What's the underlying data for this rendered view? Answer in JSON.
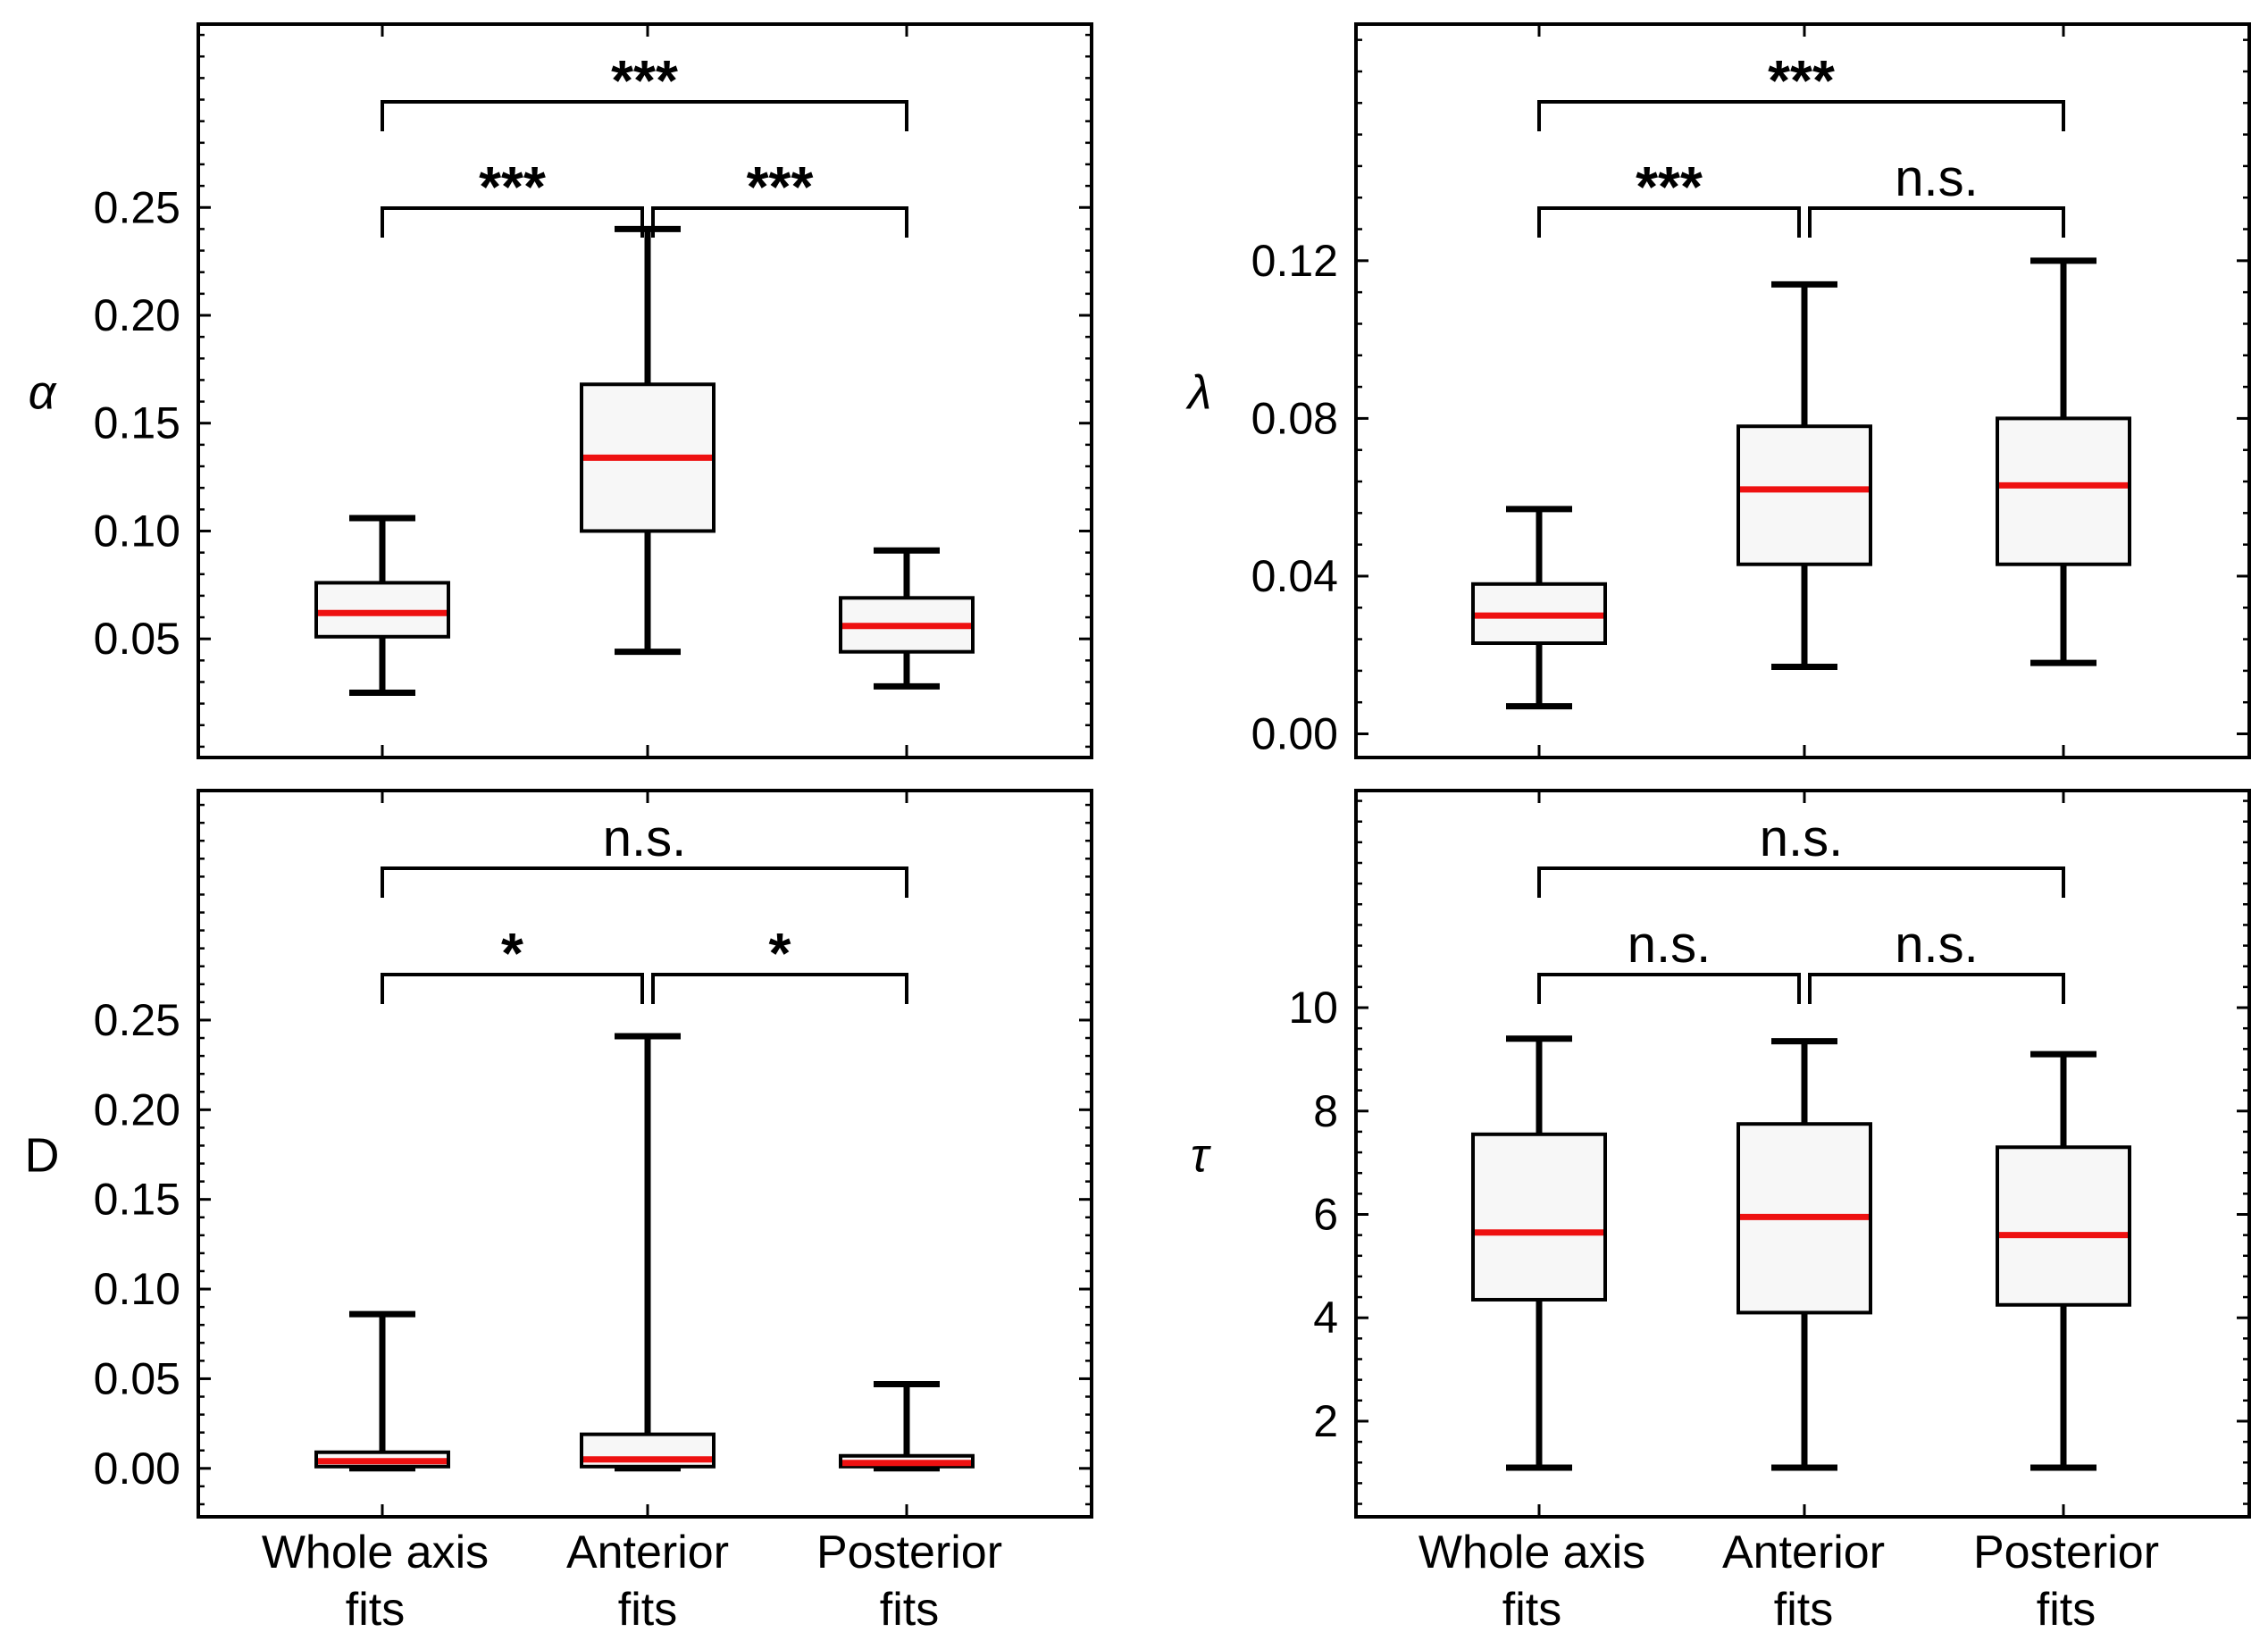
{
  "chart_data": [
    {
      "type": "box",
      "panel": "top-left",
      "ylabel": "α",
      "yticks": [
        "0.05",
        "0.10",
        "0.15",
        "0.20",
        "0.25"
      ],
      "ylim": [
        -0.005,
        0.335
      ],
      "categories": [
        "Whole axis fits",
        "Anterior fits",
        "Posterior fits"
      ],
      "boxes": [
        {
          "whisker_low": 0.025,
          "q1": 0.051,
          "median": 0.062,
          "q3": 0.076,
          "whisker_high": 0.106
        },
        {
          "whisker_low": 0.044,
          "q1": 0.1,
          "median": 0.134,
          "q3": 0.168,
          "whisker_high": 0.24
        },
        {
          "whisker_low": 0.028,
          "q1": 0.044,
          "median": 0.056,
          "q3": 0.069,
          "whisker_high": 0.091
        }
      ],
      "significance": [
        {
          "from": 0,
          "to": 1,
          "label": "***",
          "level": 1
        },
        {
          "from": 1,
          "to": 2,
          "label": "***",
          "level": 1
        },
        {
          "from": 0,
          "to": 2,
          "label": "***",
          "level": 2
        }
      ]
    },
    {
      "type": "box",
      "panel": "top-right",
      "ylabel": "λ",
      "yticks": [
        "0.00",
        "0.04",
        "0.08",
        "0.12"
      ],
      "ylim": [
        -0.006,
        0.18
      ],
      "categories": [
        "Whole axis fits",
        "Anterior fits",
        "Posterior fits"
      ],
      "boxes": [
        {
          "whisker_low": 0.007,
          "q1": 0.023,
          "median": 0.03,
          "q3": 0.038,
          "whisker_high": 0.057
        },
        {
          "whisker_low": 0.017,
          "q1": 0.043,
          "median": 0.062,
          "q3": 0.078,
          "whisker_high": 0.114
        },
        {
          "whisker_low": 0.018,
          "q1": 0.043,
          "median": 0.063,
          "q3": 0.08,
          "whisker_high": 0.12
        }
      ],
      "significance": [
        {
          "from": 0,
          "to": 1,
          "label": "***",
          "level": 1
        },
        {
          "from": 1,
          "to": 2,
          "label": "n.s.",
          "level": 1
        },
        {
          "from": 0,
          "to": 2,
          "label": "***",
          "level": 2
        }
      ]
    },
    {
      "type": "box",
      "panel": "bottom-left",
      "ylabel": "D",
      "yticks": [
        "0.00",
        "0.05",
        "0.10",
        "0.15",
        "0.20",
        "0.25"
      ],
      "ylim": [
        -0.027,
        0.378
      ],
      "categories": [
        "Whole axis fits",
        "Anterior fits",
        "Posterior fits"
      ],
      "boxes": [
        {
          "whisker_low": 0.0,
          "q1": 0.001,
          "median": 0.004,
          "q3": 0.009,
          "whisker_high": 0.086
        },
        {
          "whisker_low": 0.0,
          "q1": 0.001,
          "median": 0.005,
          "q3": 0.019,
          "whisker_high": 0.241
        },
        {
          "whisker_low": 0.0,
          "q1": 0.001,
          "median": 0.003,
          "q3": 0.007,
          "whisker_high": 0.047
        }
      ],
      "significance": [
        {
          "from": 0,
          "to": 1,
          "label": "*",
          "level": 1
        },
        {
          "from": 1,
          "to": 2,
          "label": "*",
          "level": 1
        },
        {
          "from": 0,
          "to": 2,
          "label": "n.s.",
          "level": 2
        }
      ]
    },
    {
      "type": "box",
      "panel": "bottom-right",
      "ylabel": "τ",
      "yticks": [
        "2",
        "4",
        "6",
        "8",
        "10"
      ],
      "ylim": [
        0.15,
        14.2
      ],
      "categories": [
        "Whole axis fits",
        "Anterior fits",
        "Posterior fits"
      ],
      "boxes": [
        {
          "whisker_low": 1.1,
          "q1": 4.35,
          "median": 5.65,
          "q3": 7.55,
          "whisker_high": 9.4
        },
        {
          "whisker_low": 1.1,
          "q1": 4.1,
          "median": 5.95,
          "q3": 7.75,
          "whisker_high": 9.35
        },
        {
          "whisker_low": 1.1,
          "q1": 4.25,
          "median": 5.6,
          "q3": 7.3,
          "whisker_high": 9.1
        }
      ],
      "significance": [
        {
          "from": 0,
          "to": 1,
          "label": "n.s.",
          "level": 1
        },
        {
          "from": 1,
          "to": 2,
          "label": "n.s.",
          "level": 1
        },
        {
          "from": 0,
          "to": 2,
          "label": "n.s.",
          "level": 2
        }
      ]
    }
  ],
  "x_captions": {
    "left": [
      {
        "line1": "Whole axis",
        "line2": "fits"
      },
      {
        "line1": "Anterior",
        "line2": "fits"
      },
      {
        "line1": "Posterior",
        "line2": "fits"
      }
    ],
    "right": [
      {
        "line1": "Whole axis",
        "line2": "fits"
      },
      {
        "line1": "Anterior",
        "line2": "fits"
      },
      {
        "line1": "Posterior",
        "line2": "fits"
      }
    ]
  },
  "colors": {
    "median": "#ee1111",
    "box_fill": "#f7f7f7",
    "stroke": "#000000"
  }
}
